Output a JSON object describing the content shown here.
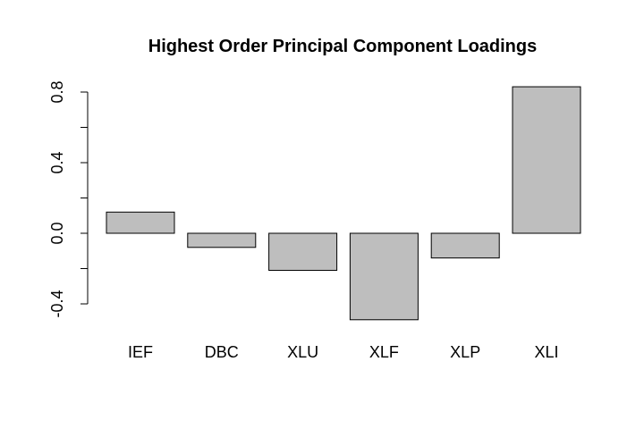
{
  "chart_data": {
    "type": "bar",
    "title": "Highest Order Principal Component Loadings",
    "xlabel": "",
    "ylabel": "",
    "categories": [
      "IEF",
      "DBC",
      "XLU",
      "XLF",
      "XLP",
      "XLI"
    ],
    "values": [
      0.12,
      -0.08,
      -0.21,
      -0.49,
      -0.14,
      0.83
    ],
    "ylim": [
      -0.4,
      0.8
    ],
    "yticks": [
      -0.4,
      0.0,
      0.4,
      0.8
    ],
    "ytick_labels": [
      "-0.4",
      "0.0",
      "0.4",
      "0.8"
    ],
    "grid": false,
    "legend": "none",
    "bar_color": "#bebebe",
    "bar_border_color": "#000000"
  }
}
